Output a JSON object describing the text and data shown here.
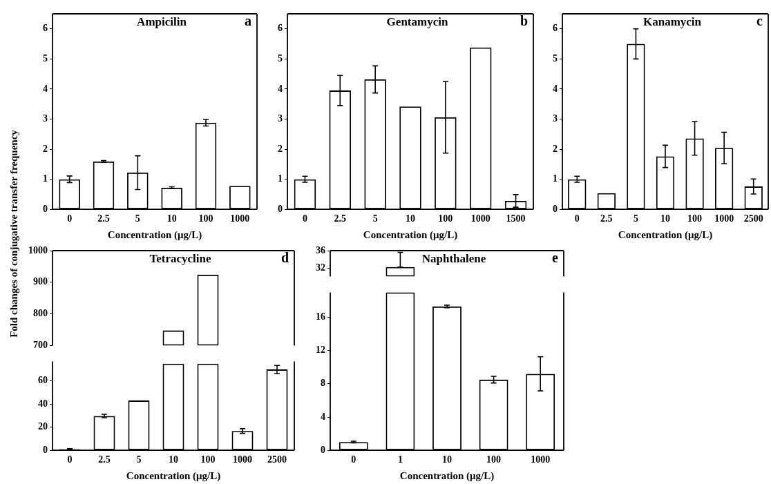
{
  "chart_data": [
    {
      "type": "bar",
      "title": "Ampicilin",
      "annotations": [
        "a"
      ],
      "ylabel": "Fold changes of conjugative transfer frequency",
      "xlabel": "Concentration (μg/L)",
      "categories": [
        "0",
        "2.5",
        "5",
        "10",
        "100",
        "1000"
      ],
      "values": [
        1.0,
        1.59,
        1.22,
        0.72,
        2.88,
        0.78
      ],
      "errors": [
        0.11,
        0.03,
        0.56,
        0.03,
        0.11,
        null
      ],
      "color": "#000000",
      "ylim": [
        0,
        6.5
      ],
      "yticks": [
        0,
        1,
        2,
        3,
        4,
        5,
        6
      ]
    },
    {
      "type": "bar",
      "title": "Gentamycin",
      "annotations": [
        "b"
      ],
      "xlabel": "Concentration (μg/L)",
      "categories": [
        "0",
        "2.5",
        "5",
        "10",
        "100",
        "1000",
        "1500"
      ],
      "values": [
        1.0,
        3.95,
        4.32,
        3.42,
        3.06,
        5.38,
        0.28
      ],
      "errors": [
        0.1,
        0.5,
        0.45,
        null,
        1.19,
        null,
        0.21
      ],
      "color": "#000000",
      "ylim": [
        0,
        6.5
      ],
      "yticks": [
        0,
        1,
        2,
        3,
        4,
        5,
        6
      ]
    },
    {
      "type": "bar",
      "title": "Kanamycin",
      "annotations": [
        "c"
      ],
      "xlabel": "Concentration (μg/L)",
      "categories": [
        "0",
        "2.5",
        "5",
        "10",
        "100",
        "1000",
        "2500"
      ],
      "values": [
        1.0,
        0.54,
        5.5,
        1.76,
        2.36,
        2.04,
        0.76
      ],
      "errors": [
        0.1,
        null,
        0.5,
        0.37,
        0.56,
        0.52,
        0.25
      ],
      "color": "#000000",
      "ylim": [
        0,
        6.5
      ],
      "yticks": [
        0,
        1,
        2,
        3,
        4,
        5,
        6
      ]
    },
    {
      "type": "bar",
      "title": "Tetracycline",
      "annotations": [
        "d"
      ],
      "categories": [
        "0",
        "2.5",
        "5",
        "10",
        "100",
        "1000",
        "2500"
      ],
      "values": [
        null,
        null,
        null,
        48,
        224,
        null,
        null
      ],
      "base": [
        null,
        null,
        null,
        700,
        700,
        null,
        null
      ],
      "color": "#000000",
      "ylim": [
        700,
        1000
      ],
      "yticks": [
        700,
        800,
        900,
        1000
      ],
      "tick_labels": "y"
    },
    {
      "type": "bar",
      "xlabel": "Concentration (μg/L)",
      "categories": [
        "0",
        "2.5",
        "5",
        "10",
        "100",
        "1000",
        "2500"
      ],
      "values": [
        1,
        29.7,
        43.1,
        75,
        75,
        16.7,
        70
      ],
      "errors": [
        0.5,
        1.5,
        null,
        null,
        null,
        2,
        3.5
      ],
      "color": "#000000",
      "ylim": [
        0,
        77
      ],
      "yticks": [
        0,
        20,
        40,
        60
      ]
    },
    {
      "type": "bar",
      "title": "Naphthalene",
      "annotations": [
        "e"
      ],
      "categories": [
        "0",
        "1",
        "10",
        "100",
        "1000"
      ],
      "values": [
        null,
        2.2,
        null,
        null,
        null
      ],
      "base": [
        null,
        30,
        null,
        null,
        null
      ],
      "errors": [
        null,
        [
          32.2,
          35.6
        ],
        null,
        null,
        null
      ],
      "color": "#000000",
      "ylim": [
        30,
        36
      ],
      "yticks": [
        32,
        36
      ],
      "tick_labels": "y"
    },
    {
      "type": "bar",
      "xlabel": "Concentration (μg/L)",
      "categories": [
        "0",
        "1",
        "10",
        "100",
        "1000"
      ],
      "values": [
        1.0,
        19,
        17.3,
        8.5,
        9.2
      ],
      "errors": [
        0.1,
        null,
        0.15,
        0.4,
        2.05
      ],
      "color": "#000000",
      "ylim": [
        0,
        19
      ],
      "yticks": [
        0,
        4,
        8,
        12,
        16
      ]
    }
  ]
}
